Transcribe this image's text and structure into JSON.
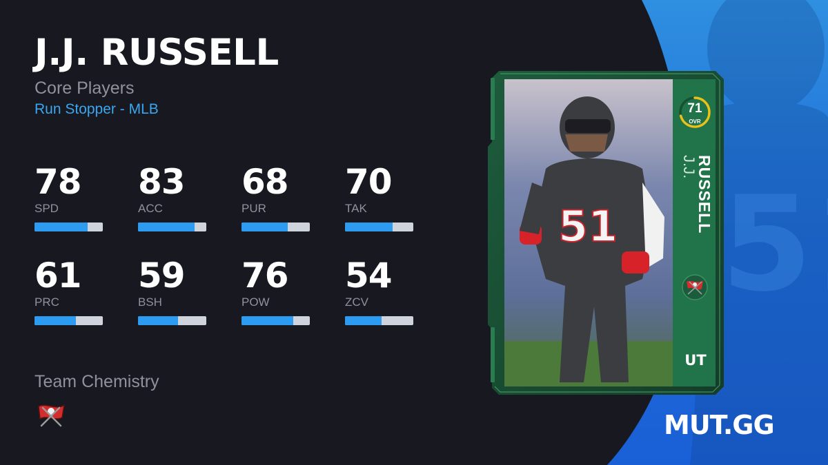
{
  "player": {
    "name": "J.J. RUSSELL",
    "first_name": "J.J.",
    "last_name": "RUSSELL",
    "program": "Core Players",
    "archetype": "Run Stopper - MLB",
    "overall": "71",
    "overall_label": "OVR",
    "overall_fraction": 0.71,
    "rarity": "UT",
    "jersey_number": "51"
  },
  "stats": [
    {
      "value": "78",
      "label": "SPD",
      "fill": 0.78
    },
    {
      "value": "83",
      "label": "ACC",
      "fill": 0.83
    },
    {
      "value": "68",
      "label": "PUR",
      "fill": 0.68
    },
    {
      "value": "70",
      "label": "TAK",
      "fill": 0.7
    },
    {
      "value": "61",
      "label": "PRC",
      "fill": 0.61
    },
    {
      "value": "59",
      "label": "BSH",
      "fill": 0.59
    },
    {
      "value": "76",
      "label": "POW",
      "fill": 0.76
    },
    {
      "value": "54",
      "label": "ZCV",
      "fill": 0.54
    }
  ],
  "chemistry": {
    "title": "Team Chemistry",
    "team_icon": "buccaneers-flag-icon"
  },
  "brand": "MUT.GG",
  "colors": {
    "background": "#171820",
    "accent_blue": "#2d9bf0",
    "card_green": "#1f6b45",
    "ovr_ring": "#e8c21a",
    "muted_text": "#8f929c"
  }
}
